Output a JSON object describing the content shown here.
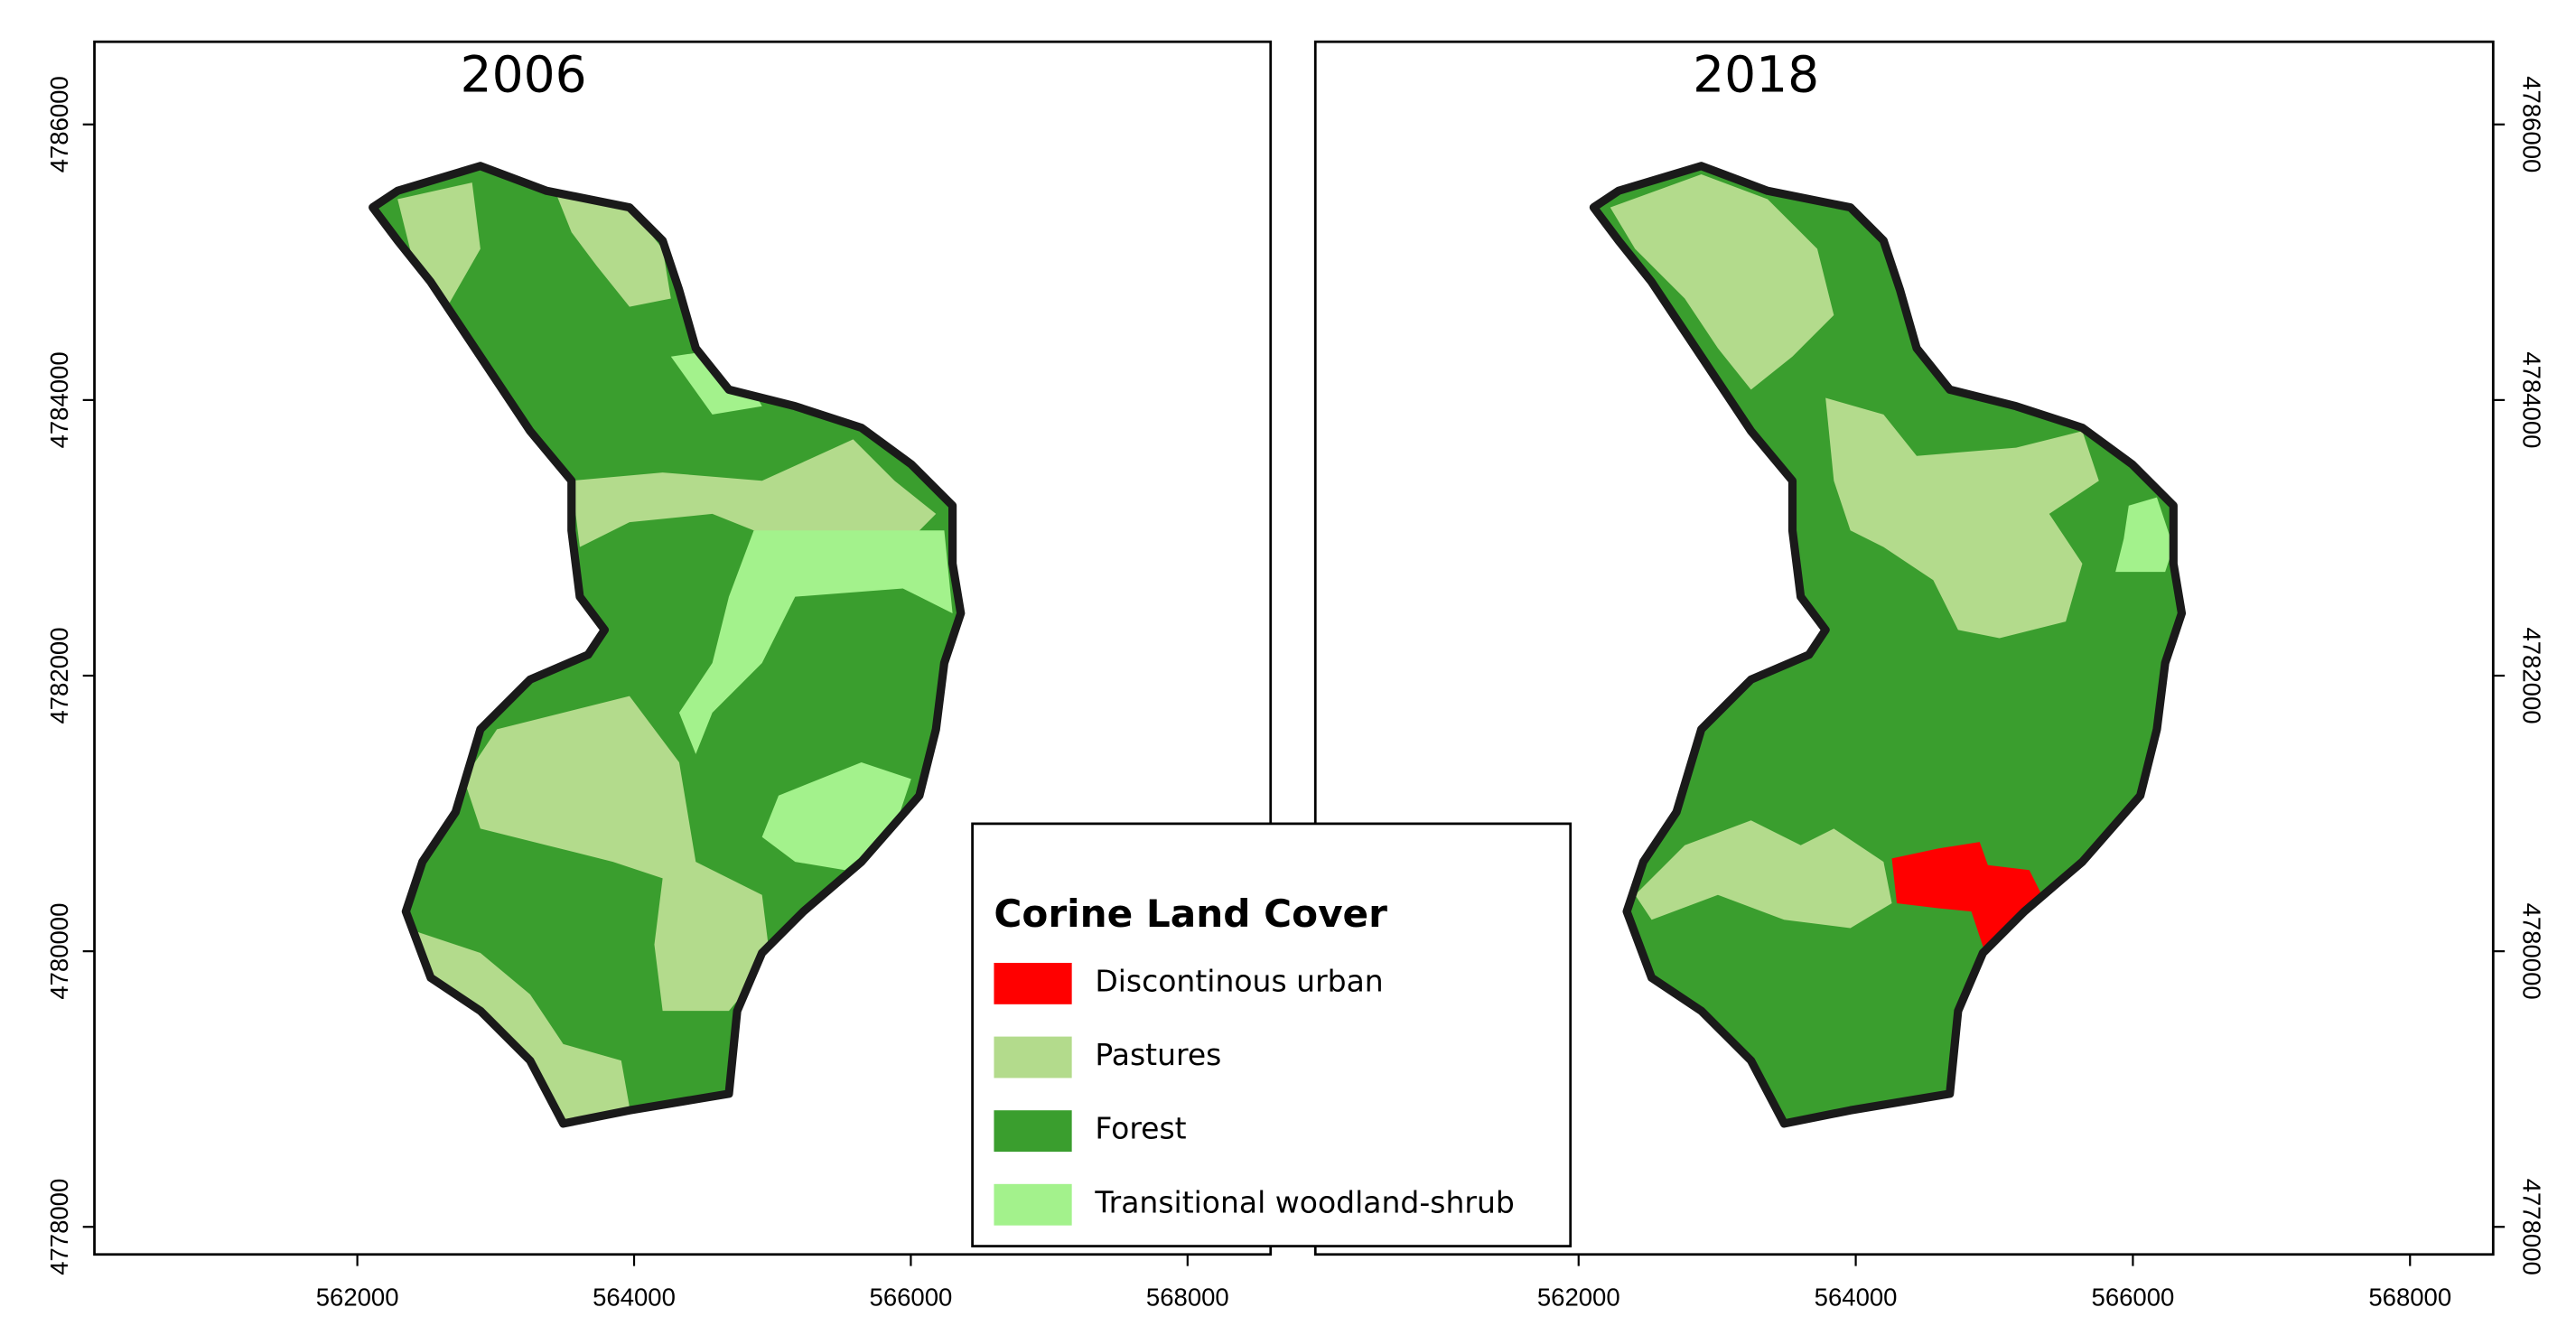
{
  "maps": [
    {
      "title": "2006",
      "xlim": [
        560100,
        568600
      ],
      "ylim": [
        4777800,
        4786600
      ],
      "xticks": [
        562000,
        564000,
        566000,
        568000
      ],
      "yticks": [
        4778000,
        4780000,
        4782000,
        4784000,
        4786000
      ],
      "y_axis_side": "left"
    },
    {
      "title": "2018",
      "xlim": [
        560100,
        568600
      ],
      "ylim": [
        4777800,
        4786600
      ],
      "xticks": [
        562000,
        564000,
        566000,
        568000
      ],
      "yticks": [
        4778000,
        4780000,
        4782000,
        4784000,
        4786000
      ],
      "y_axis_side": "right"
    }
  ],
  "legend": {
    "title": "Corine Land Cover",
    "items": [
      {
        "label": "Discontinous urban",
        "color": "#ff0000"
      },
      {
        "label": "Pastures",
        "color": "#b3db8c"
      },
      {
        "label": "Forest",
        "color": "#3a9e2e"
      },
      {
        "label": "Transitional woodland-shrub",
        "color": "#a3f28c"
      }
    ]
  }
}
